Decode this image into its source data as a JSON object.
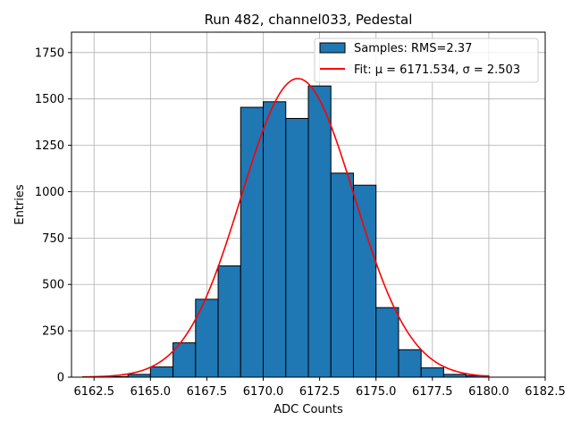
{
  "chart_data": {
    "type": "bar",
    "title": "Run 482, channel033, Pedestal",
    "xlabel": "ADC Counts",
    "ylabel": "Entries",
    "xlim": [
      6161.5,
      6182.5
    ],
    "ylim": [
      0,
      1860
    ],
    "xticks": [
      6162.5,
      6165.0,
      6167.5,
      6170.0,
      6172.5,
      6175.0,
      6177.5,
      6180.0,
      6182.5
    ],
    "xtick_labels": [
      "6162.5",
      "6165.0",
      "6167.5",
      "6170.0",
      "6172.5",
      "6175.0",
      "6177.5",
      "6180.0",
      "6182.5"
    ],
    "yticks": [
      0,
      250,
      500,
      750,
      1000,
      1250,
      1500,
      1750
    ],
    "ytick_labels": [
      "0",
      "250",
      "500",
      "750",
      "1000",
      "1250",
      "1500",
      "1750"
    ],
    "grid": true,
    "legend_position": "top-right",
    "bar_color": "#1f77b4",
    "fit_color": "#ff0000",
    "histogram": {
      "name": "Samples: RMS=2.37",
      "bin_edges": [
        6162,
        6163,
        6164,
        6165,
        6166,
        6167,
        6168,
        6169,
        6170,
        6171,
        6172,
        6173,
        6174,
        6175,
        6176,
        6177,
        6178,
        6179,
        6180,
        6181,
        6182
      ],
      "counts": [
        2,
        3,
        15,
        55,
        185,
        420,
        600,
        1455,
        1485,
        1395,
        1570,
        1100,
        1035,
        375,
        148,
        50,
        15,
        8,
        0,
        0
      ]
    },
    "fit": {
      "name": "Fit: μ = 6171.534, σ = 2.503",
      "mu": 6171.534,
      "sigma": 2.503,
      "amplitude": 1610,
      "x_range": [
        6162,
        6180
      ]
    }
  }
}
